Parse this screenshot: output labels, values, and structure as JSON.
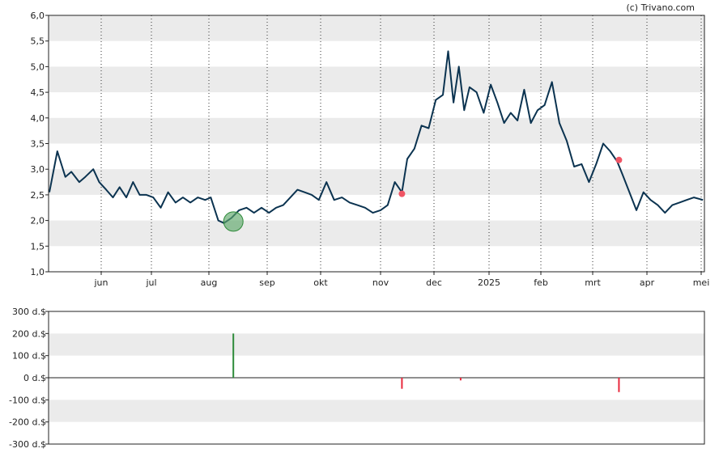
{
  "credit": "(c) Trivano.com",
  "colors": {
    "price_line": "#0b3350",
    "band": "#ebebeb",
    "buy": "#2e8b3a",
    "sell": "#e8283c",
    "buy_marker_fill": "#5ea86a",
    "sell_marker_fill": "#f05565"
  },
  "chart_data": [
    {
      "type": "line",
      "name": "price",
      "x_ticks": [
        "jun",
        "jul",
        "aug",
        "sep",
        "okt",
        "nov",
        "dec",
        "2025",
        "feb",
        "mrt",
        "apr",
        "mei"
      ],
      "y_ticks": [
        "1,0",
        "1,5",
        "2,0",
        "2,5",
        "3,0",
        "3,5",
        "4,0",
        "4,5",
        "5,0",
        "5,5",
        "6,0"
      ],
      "ylim": [
        1.0,
        6.0
      ],
      "grid": "alternating horizontal bands, dotted vertical lines at month ticks",
      "x_dates": [
        "2024-05-06",
        "2024-05-10",
        "2024-05-14",
        "2024-05-17",
        "2024-05-21",
        "2024-05-24",
        "2024-05-28",
        "2024-05-31",
        "2024-06-04",
        "2024-06-08",
        "2024-06-12",
        "2024-06-16",
        "2024-06-20",
        "2024-06-24",
        "2024-06-28",
        "2024-07-02",
        "2024-07-06",
        "2024-07-10",
        "2024-07-14",
        "2024-07-18",
        "2024-07-22",
        "2024-07-26",
        "2024-07-30",
        "2024-08-02",
        "2024-08-06",
        "2024-08-09",
        "2024-08-13",
        "2024-08-17",
        "2024-08-21",
        "2024-08-25",
        "2024-08-29",
        "2024-09-02",
        "2024-09-06",
        "2024-09-10",
        "2024-09-14",
        "2024-09-18",
        "2024-09-22",
        "2024-09-26",
        "2024-09-30",
        "2024-10-04",
        "2024-10-08",
        "2024-10-12",
        "2024-10-16",
        "2024-10-20",
        "2024-10-24",
        "2024-10-28",
        "2024-11-01",
        "2024-11-05",
        "2024-11-09",
        "2024-11-13",
        "2024-11-16",
        "2024-11-20",
        "2024-11-24",
        "2024-11-28",
        "2024-12-02",
        "2024-12-06",
        "2024-12-09",
        "2024-12-12",
        "2024-12-15",
        "2024-12-18",
        "2024-12-21",
        "2024-12-25",
        "2024-12-29",
        "2025-01-02",
        "2025-01-06",
        "2025-01-10",
        "2025-01-14",
        "2025-01-18",
        "2025-01-22",
        "2025-01-26",
        "2025-01-30",
        "2025-02-03",
        "2025-02-07",
        "2025-02-11",
        "2025-02-15",
        "2025-02-19",
        "2025-02-23",
        "2025-02-27",
        "2025-03-03",
        "2025-03-07",
        "2025-03-11",
        "2025-03-15",
        "2025-03-18",
        "2025-03-22",
        "2025-03-26",
        "2025-03-30",
        "2025-04-03",
        "2025-04-07",
        "2025-04-11",
        "2025-04-15",
        "2025-04-19",
        "2025-04-23",
        "2025-04-27",
        "2025-05-02"
      ],
      "values": [
        2.55,
        3.35,
        2.85,
        2.95,
        2.75,
        2.85,
        3.0,
        2.75,
        2.6,
        2.45,
        2.65,
        2.45,
        2.75,
        2.5,
        2.5,
        2.45,
        2.25,
        2.55,
        2.35,
        2.45,
        2.35,
        2.45,
        2.4,
        2.45,
        2.0,
        1.95,
        2.05,
        2.2,
        2.25,
        2.15,
        2.25,
        2.15,
        2.25,
        2.3,
        2.45,
        2.6,
        2.55,
        2.5,
        2.4,
        2.75,
        2.4,
        2.45,
        2.35,
        2.3,
        2.25,
        2.15,
        2.2,
        2.3,
        2.75,
        2.55,
        3.2,
        3.4,
        3.85,
        3.8,
        4.35,
        4.45,
        5.3,
        4.3,
        5.0,
        4.15,
        4.6,
        4.5,
        4.1,
        4.65,
        4.3,
        3.9,
        4.1,
        3.95,
        4.55,
        3.9,
        4.15,
        4.25,
        4.7,
        3.9,
        3.55,
        3.05,
        3.1,
        2.75,
        3.1,
        3.5,
        3.35,
        3.15,
        2.9,
        2.55,
        2.2,
        2.55,
        2.4,
        2.3,
        2.15,
        2.3,
        2.35,
        2.4,
        2.45,
        2.4
      ]
    },
    {
      "type": "bar",
      "name": "insider transactions",
      "y_ticks": [
        "300 d.$",
        "200 d.$",
        "100 d.$",
        "0 d.$",
        "-100 d.$",
        "-200 d.$",
        "-300 d.$"
      ],
      "ylim": [
        -300,
        300
      ],
      "values_unit": "d.$",
      "bars": [
        {
          "date": "2024-08-14",
          "value": 200,
          "kind": "buy",
          "price": 1.98
        },
        {
          "date": "2024-11-13",
          "value": -50,
          "kind": "sell",
          "price": 2.52
        },
        {
          "date": "2024-12-16",
          "value": -12,
          "kind": "sell",
          "price": null
        },
        {
          "date": "2025-03-16",
          "value": -65,
          "kind": "sell",
          "price": 3.18
        }
      ]
    }
  ]
}
